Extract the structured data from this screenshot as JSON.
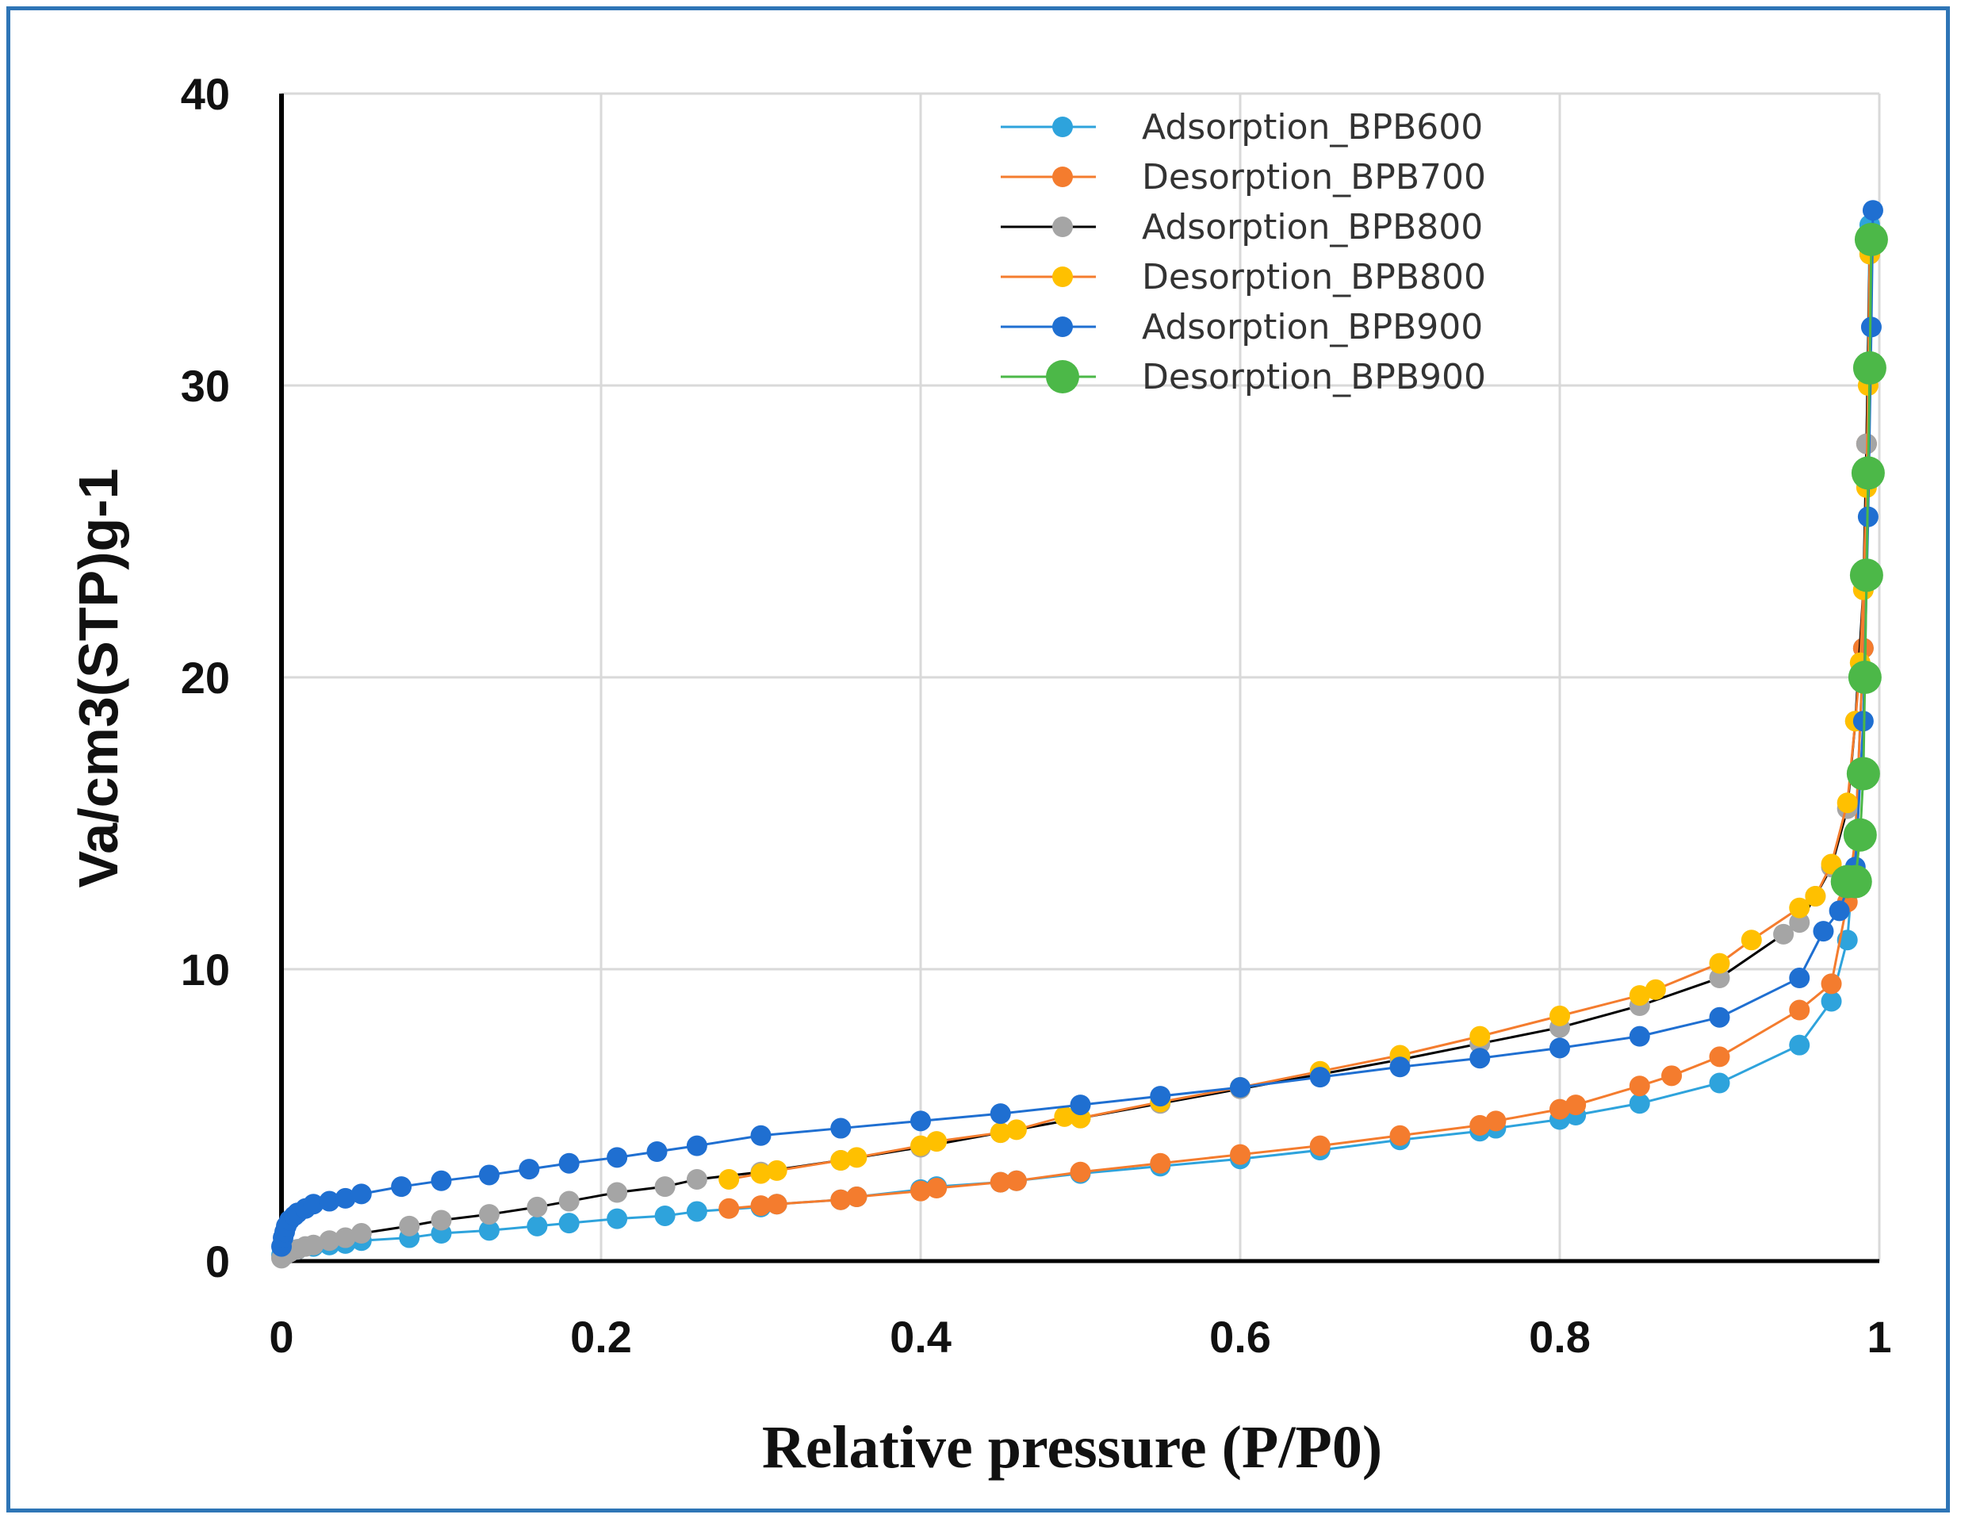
{
  "chart_data": {
    "type": "scatter",
    "xlabel": "Relative pressure (P/P0)",
    "ylabel": "Va/cm3(STP)g-1",
    "xlim": [
      0,
      1
    ],
    "ylim": [
      0,
      40
    ],
    "x_ticks": [
      "0",
      "0.2",
      "0.4",
      "0.6",
      "0.8",
      "1"
    ],
    "y_ticks": [
      "0",
      "10",
      "20",
      "30",
      "40"
    ],
    "grid": true,
    "legend_position": "top-right",
    "series": [
      {
        "name": "Adsorption_BPB600",
        "color": "#2ea3dc",
        "x": [
          0.0,
          0.002,
          0.005,
          0.01,
          0.02,
          0.03,
          0.04,
          0.05,
          0.08,
          0.1,
          0.13,
          0.16,
          0.18,
          0.21,
          0.24,
          0.26,
          0.3,
          0.31,
          0.35,
          0.36,
          0.4,
          0.41,
          0.45,
          0.46,
          0.5,
          0.55,
          0.6,
          0.65,
          0.7,
          0.75,
          0.76,
          0.8,
          0.81,
          0.85,
          0.9,
          0.95,
          0.97,
          0.98,
          0.985,
          0.99,
          0.992,
          0.994
        ],
        "y": [
          0.2,
          0.3,
          0.35,
          0.4,
          0.5,
          0.55,
          0.6,
          0.7,
          0.8,
          0.95,
          1.05,
          1.2,
          1.3,
          1.45,
          1.55,
          1.7,
          1.85,
          1.95,
          2.1,
          2.2,
          2.45,
          2.55,
          2.7,
          2.75,
          3.0,
          3.25,
          3.5,
          3.8,
          4.15,
          4.45,
          4.55,
          4.85,
          5.0,
          5.4,
          6.1,
          7.4,
          8.9,
          11.0,
          14.5,
          21.0,
          28.0,
          35.5
        ]
      },
      {
        "name": "Desorption_BPB700",
        "color": "#f47c2e",
        "x": [
          0.994,
          0.992,
          0.99,
          0.985,
          0.98,
          0.97,
          0.95,
          0.9,
          0.87,
          0.85,
          0.81,
          0.8,
          0.76,
          0.75,
          0.7,
          0.65,
          0.6,
          0.55,
          0.5,
          0.46,
          0.45,
          0.41,
          0.4,
          0.36,
          0.35,
          0.31,
          0.3,
          0.28
        ],
        "y": [
          34.5,
          28.0,
          21.0,
          14.5,
          12.3,
          9.5,
          8.6,
          7.0,
          6.35,
          6.0,
          5.35,
          5.2,
          4.8,
          4.65,
          4.3,
          3.95,
          3.65,
          3.35,
          3.05,
          2.75,
          2.7,
          2.5,
          2.4,
          2.2,
          2.1,
          1.95,
          1.9,
          1.8
        ]
      },
      {
        "name": "Adsorption_BPB800",
        "color": "#a5a5a5",
        "line_color": "#000000",
        "x": [
          0.0,
          0.002,
          0.005,
          0.01,
          0.015,
          0.02,
          0.03,
          0.04,
          0.05,
          0.08,
          0.1,
          0.13,
          0.16,
          0.18,
          0.21,
          0.24,
          0.26,
          0.3,
          0.35,
          0.4,
          0.45,
          0.5,
          0.55,
          0.6,
          0.65,
          0.7,
          0.75,
          0.8,
          0.85,
          0.9,
          0.94,
          0.95,
          0.96,
          0.97,
          0.98,
          0.985,
          0.99,
          0.992,
          0.994
        ],
        "y": [
          0.1,
          0.2,
          0.3,
          0.4,
          0.5,
          0.55,
          0.7,
          0.8,
          0.95,
          1.2,
          1.4,
          1.6,
          1.85,
          2.05,
          2.35,
          2.55,
          2.8,
          3.05,
          3.45,
          3.9,
          4.4,
          4.9,
          5.4,
          5.9,
          6.4,
          6.9,
          7.45,
          8.0,
          8.75,
          9.7,
          11.2,
          11.6,
          12.5,
          13.5,
          15.5,
          18.5,
          23.0,
          28.0,
          34.5
        ]
      },
      {
        "name": "Desorption_BPB800",
        "color": "#ffc000",
        "line_color": "#f47c2e",
        "x": [
          0.994,
          0.993,
          0.992,
          0.99,
          0.988,
          0.985,
          0.98,
          0.97,
          0.96,
          0.95,
          0.92,
          0.9,
          0.86,
          0.85,
          0.8,
          0.75,
          0.7,
          0.65,
          0.6,
          0.55,
          0.5,
          0.49,
          0.46,
          0.45,
          0.41,
          0.4,
          0.36,
          0.35,
          0.31,
          0.3,
          0.28
        ],
        "y": [
          34.5,
          30.0,
          26.5,
          23.0,
          20.5,
          18.5,
          15.7,
          13.6,
          12.5,
          12.1,
          11.0,
          10.2,
          9.3,
          9.1,
          8.4,
          7.7,
          7.05,
          6.5,
          5.95,
          5.45,
          4.9,
          4.95,
          4.5,
          4.4,
          4.1,
          3.95,
          3.55,
          3.45,
          3.1,
          3.0,
          2.8
        ]
      },
      {
        "name": "Adsorption_BPB900",
        "color": "#1f6fd1",
        "x": [
          0.0,
          0.001,
          0.002,
          0.003,
          0.005,
          0.008,
          0.01,
          0.015,
          0.02,
          0.03,
          0.04,
          0.05,
          0.075,
          0.1,
          0.13,
          0.155,
          0.18,
          0.21,
          0.235,
          0.26,
          0.3,
          0.35,
          0.4,
          0.45,
          0.5,
          0.55,
          0.6,
          0.65,
          0.7,
          0.75,
          0.8,
          0.85,
          0.9,
          0.95,
          0.965,
          0.975,
          0.985,
          0.99,
          0.993,
          0.995,
          0.996
        ],
        "y": [
          0.5,
          0.8,
          1.0,
          1.2,
          1.4,
          1.55,
          1.65,
          1.8,
          1.95,
          2.05,
          2.15,
          2.3,
          2.55,
          2.75,
          2.95,
          3.15,
          3.35,
          3.55,
          3.75,
          3.95,
          4.3,
          4.55,
          4.8,
          5.05,
          5.35,
          5.65,
          5.95,
          6.3,
          6.65,
          6.95,
          7.3,
          7.7,
          8.35,
          9.7,
          11.3,
          12.0,
          13.5,
          18.5,
          25.5,
          32.0,
          36.0
        ]
      },
      {
        "name": "Desorption_BPB900",
        "color": "#4cb848",
        "large": true,
        "x": [
          0.995,
          0.994,
          0.993,
          0.992,
          0.991,
          0.99,
          0.988,
          0.985,
          0.98
        ],
        "y": [
          35.0,
          30.6,
          27.0,
          23.5,
          20.0,
          16.7,
          14.6,
          13.0,
          13.0
        ]
      }
    ]
  }
}
